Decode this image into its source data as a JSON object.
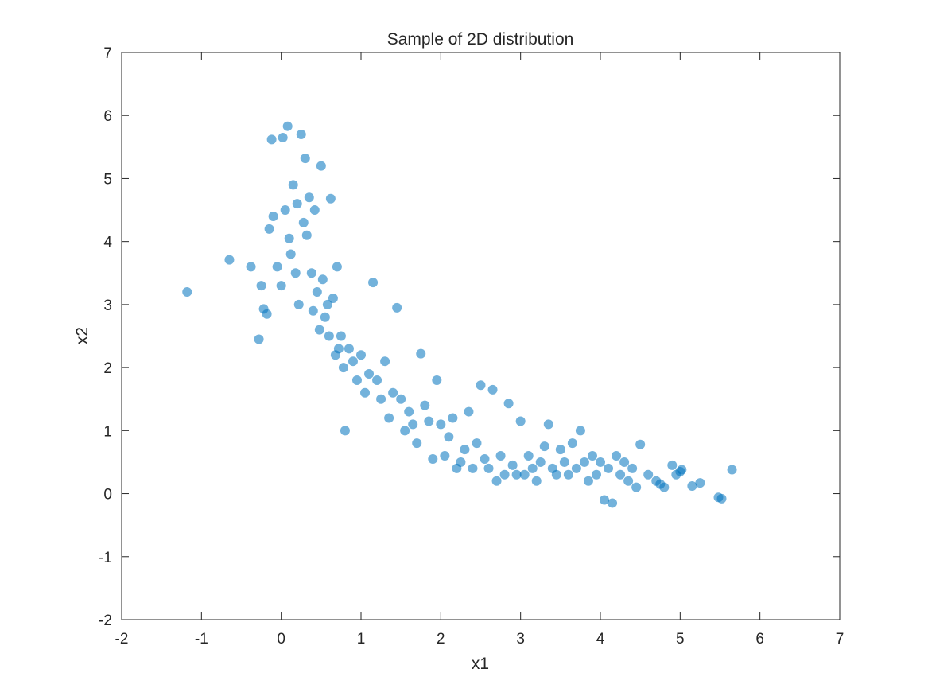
{
  "chart_data": {
    "type": "scatter",
    "title": "Sample of 2D distribution",
    "xlabel": "x1",
    "ylabel": "x2",
    "xlim": [
      -2,
      7
    ],
    "ylim": [
      -2,
      7
    ],
    "xticks": [
      -2,
      -1,
      0,
      1,
      2,
      3,
      4,
      5,
      6,
      7
    ],
    "yticks": [
      -2,
      -1,
      0,
      1,
      2,
      3,
      4,
      5,
      6,
      7
    ],
    "xtick_labels": [
      "-2",
      "-1",
      "0",
      "1",
      "2",
      "3",
      "4",
      "5",
      "6",
      "7"
    ],
    "ytick_labels": [
      "-2",
      "-1",
      "0",
      "1",
      "2",
      "3",
      "4",
      "5",
      "6",
      "7"
    ],
    "grid": false,
    "marker_color": "#0072BD",
    "marker_alpha": 0.55,
    "series": [
      {
        "x": [
          -1.18,
          -0.65,
          -0.38,
          -0.28,
          -0.25,
          -0.22,
          -0.18,
          -0.15,
          -0.12,
          -0.1,
          -0.05,
          0.0,
          0.02,
          0.05,
          0.08,
          0.1,
          0.12,
          0.15,
          0.18,
          0.2,
          0.22,
          0.25,
          0.28,
          0.3,
          0.32,
          0.35,
          0.38,
          0.4,
          0.42,
          0.45,
          0.48,
          0.5,
          0.52,
          0.55,
          0.58,
          0.6,
          0.62,
          0.65,
          0.68,
          0.7,
          0.72,
          0.75,
          0.78,
          0.8,
          0.85,
          0.9,
          0.95,
          1.0,
          1.05,
          1.1,
          1.15,
          1.2,
          1.25,
          1.3,
          1.35,
          1.4,
          1.45,
          1.5,
          1.55,
          1.6,
          1.65,
          1.7,
          1.75,
          1.8,
          1.85,
          1.9,
          1.95,
          2.0,
          2.05,
          2.1,
          2.15,
          2.2,
          2.25,
          2.3,
          2.35,
          2.4,
          2.45,
          2.5,
          2.55,
          2.6,
          2.65,
          2.7,
          2.75,
          2.8,
          2.85,
          2.9,
          2.95,
          3.0,
          3.05,
          3.1,
          3.15,
          3.2,
          3.25,
          3.3,
          3.35,
          3.4,
          3.45,
          3.5,
          3.55,
          3.6,
          3.65,
          3.7,
          3.75,
          3.8,
          3.85,
          3.9,
          3.95,
          4.0,
          4.05,
          4.1,
          4.15,
          4.2,
          4.25,
          4.3,
          4.35,
          4.4,
          4.45,
          4.5,
          4.6,
          4.7,
          4.75,
          4.8,
          4.9,
          4.95,
          5.0,
          5.02,
          5.15,
          5.25,
          5.48,
          5.52,
          5.65
        ],
        "y": [
          3.2,
          3.71,
          3.6,
          2.45,
          3.3,
          2.93,
          2.85,
          4.2,
          5.62,
          4.4,
          3.6,
          3.3,
          5.65,
          4.5,
          5.83,
          4.05,
          3.8,
          4.9,
          3.5,
          4.6,
          3.0,
          5.7,
          4.3,
          5.32,
          4.1,
          4.7,
          3.5,
          2.9,
          4.5,
          3.2,
          2.6,
          5.2,
          3.4,
          2.8,
          3.0,
          2.5,
          4.68,
          3.1,
          2.2,
          3.6,
          2.3,
          2.5,
          2.0,
          1.0,
          2.3,
          2.1,
          1.8,
          2.2,
          1.6,
          1.9,
          3.35,
          1.8,
          1.5,
          2.1,
          1.2,
          1.6,
          2.95,
          1.5,
          1.0,
          1.3,
          1.1,
          0.8,
          2.22,
          1.4,
          1.15,
          0.55,
          1.8,
          1.1,
          0.6,
          0.9,
          1.2,
          0.4,
          0.5,
          0.7,
          1.3,
          0.4,
          0.8,
          1.72,
          0.55,
          0.4,
          1.65,
          0.2,
          0.6,
          0.3,
          1.43,
          0.45,
          0.3,
          1.15,
          0.3,
          0.6,
          0.4,
          0.2,
          0.5,
          0.75,
          1.1,
          0.4,
          0.3,
          0.7,
          0.5,
          0.3,
          0.8,
          0.4,
          1.0,
          0.5,
          0.2,
          0.6,
          0.3,
          0.5,
          -0.1,
          0.4,
          -0.15,
          0.6,
          0.3,
          0.5,
          0.2,
          0.4,
          0.1,
          0.78,
          0.3,
          0.2,
          0.15,
          0.1,
          0.45,
          0.3,
          0.35,
          0.38,
          0.12,
          0.17,
          -0.06,
          -0.08,
          0.38
        ]
      }
    ]
  }
}
